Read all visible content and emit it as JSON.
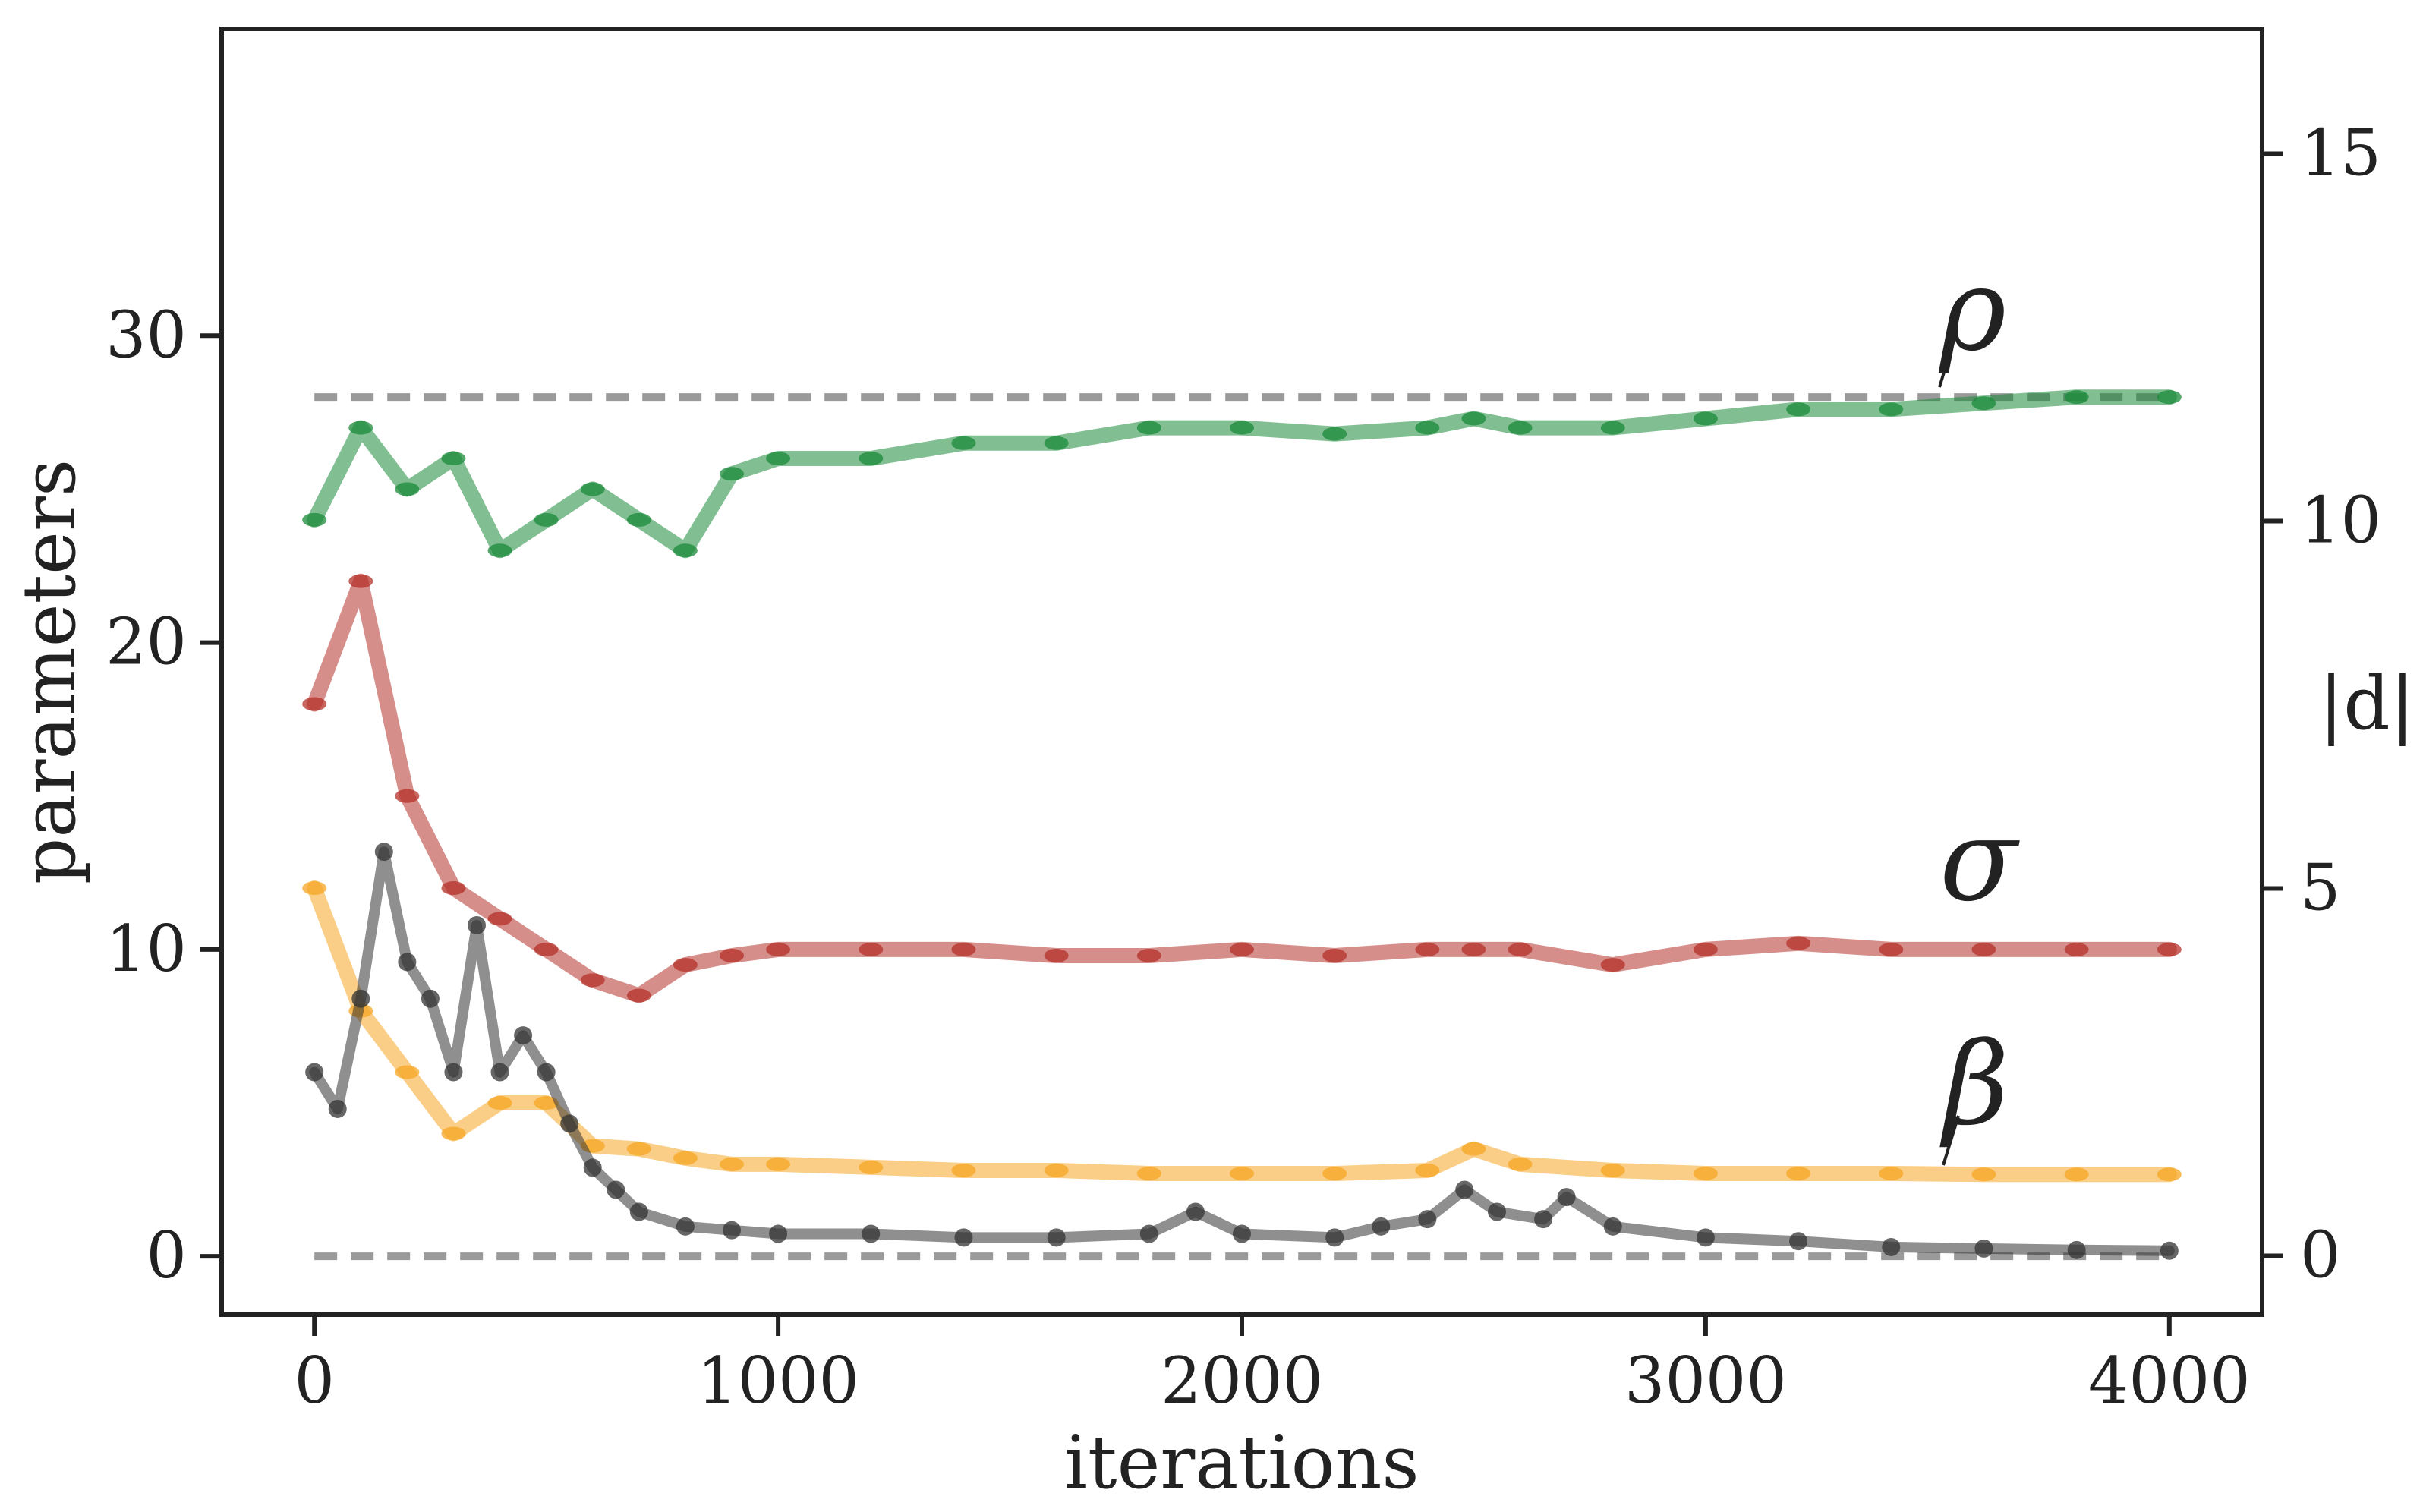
{
  "chart_data": {
    "type": "scatter",
    "title": "",
    "xlabel": "iterations",
    "ylabel": "parameters",
    "y2label": "|d|",
    "xlim": [
      -200,
      4200
    ],
    "ylim": [
      -1.9,
      40
    ],
    "y2lim": [
      -0.8,
      16.7
    ],
    "xticks": [
      0,
      1000,
      2000,
      3000,
      4000
    ],
    "yticks": [
      0,
      10,
      20,
      30
    ],
    "y2ticks": [
      0,
      5,
      10,
      15
    ],
    "grid": false,
    "legend": "none",
    "reference_lines": [
      {
        "axis": "left",
        "y": 28,
        "x_range": [
          0,
          4000
        ],
        "style": "dashed",
        "color": "#9a9a9a"
      },
      {
        "axis": "left",
        "y": 0,
        "x_range": [
          0,
          4000
        ],
        "style": "dashed",
        "color": "#9a9a9a"
      }
    ],
    "series": [
      {
        "name": "ρ",
        "axis": "left",
        "color": "#1a8a3a",
        "x": [
          0,
          100,
          200,
          300,
          400,
          500,
          600,
          700,
          800,
          900,
          1000,
          1200,
          1400,
          1600,
          1800,
          2000,
          2200,
          2400,
          2500,
          2600,
          2800,
          3000,
          3200,
          3400,
          3600,
          3800,
          4000
        ],
        "y": [
          24,
          27,
          25,
          26,
          23,
          24,
          25,
          24,
          23,
          25.5,
          26,
          26,
          26.5,
          26.5,
          27,
          27,
          26.8,
          27,
          27.3,
          27,
          27,
          27.3,
          27.6,
          27.6,
          27.8,
          28,
          28
        ]
      },
      {
        "name": "σ",
        "axis": "left",
        "color": "#b5322a",
        "x": [
          0,
          100,
          200,
          300,
          400,
          500,
          600,
          700,
          800,
          900,
          1000,
          1200,
          1400,
          1600,
          1800,
          2000,
          2200,
          2400,
          2500,
          2600,
          2800,
          3000,
          3200,
          3400,
          3600,
          3800,
          4000
        ],
        "y": [
          18,
          22,
          15,
          12,
          11,
          10,
          9,
          8.5,
          9.5,
          9.8,
          10,
          10,
          10,
          9.8,
          9.8,
          10,
          9.8,
          10,
          10,
          10,
          9.5,
          10,
          10.2,
          10,
          10,
          10,
          10
        ]
      },
      {
        "name": "β",
        "axis": "left",
        "color": "#f5a623",
        "x": [
          0,
          100,
          200,
          300,
          400,
          500,
          600,
          700,
          800,
          900,
          1000,
          1200,
          1400,
          1600,
          1800,
          2000,
          2200,
          2400,
          2500,
          2600,
          2800,
          3000,
          3200,
          3400,
          3600,
          3800,
          4000
        ],
        "y": [
          12,
          8,
          6,
          4,
          5,
          5,
          3.6,
          3.5,
          3.2,
          3,
          3,
          2.9,
          2.8,
          2.8,
          2.7,
          2.7,
          2.7,
          2.8,
          3.5,
          3,
          2.8,
          2.7,
          2.7,
          2.7,
          2.67,
          2.67,
          2.67
        ]
      },
      {
        "name": "|d|",
        "axis": "right",
        "color": "#333333",
        "x": [
          0,
          50,
          100,
          150,
          200,
          250,
          300,
          350,
          400,
          450,
          500,
          550,
          600,
          650,
          700,
          800,
          900,
          1000,
          1200,
          1400,
          1600,
          1800,
          1900,
          2000,
          2200,
          2300,
          2400,
          2480,
          2550,
          2650,
          2700,
          2800,
          3000,
          3200,
          3400,
          3600,
          3800,
          4000
        ],
        "y": [
          2.5,
          2,
          3.5,
          5.5,
          4,
          3.5,
          2.5,
          4.5,
          2.5,
          3,
          2.5,
          1.8,
          1.2,
          0.9,
          0.6,
          0.4,
          0.35,
          0.3,
          0.3,
          0.25,
          0.25,
          0.3,
          0.6,
          0.3,
          0.25,
          0.4,
          0.5,
          0.9,
          0.6,
          0.5,
          0.8,
          0.4,
          0.25,
          0.2,
          0.12,
          0.1,
          0.08,
          0.07
        ]
      }
    ]
  }
}
